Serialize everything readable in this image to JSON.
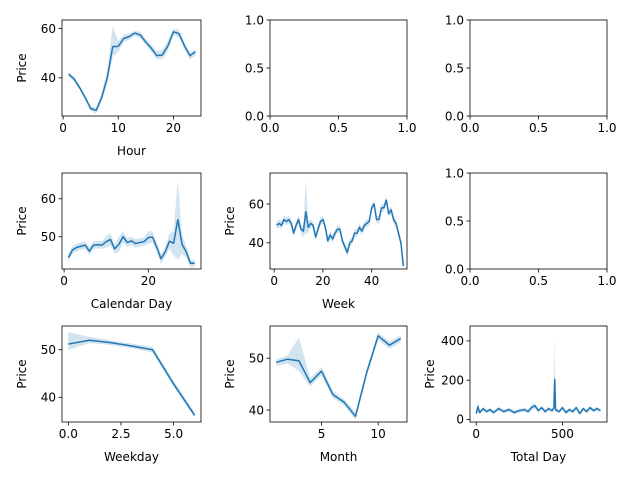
{
  "chart_data": [
    {
      "type": "line",
      "xlabel": "Hour",
      "ylabel": "Price",
      "xlim": [
        -0.2,
        25.0
      ],
      "ylim": [
        24.5,
        63.5
      ],
      "xticks": [
        0,
        10,
        20
      ],
      "yticks": [
        40,
        60
      ],
      "x": [
        1,
        2,
        3,
        4,
        5,
        6,
        7,
        8,
        9,
        10,
        11,
        12,
        13,
        14,
        15,
        16,
        17,
        18,
        19,
        20,
        21,
        22,
        23,
        24
      ],
      "series": [
        {
          "values": [
            41.5,
            39.5,
            36.0,
            32.0,
            27.5,
            26.8,
            32.0,
            40.0,
            52.7,
            52.8,
            56.0,
            56.8,
            58.2,
            57.4,
            54.5,
            52.0,
            49.0,
            49.3,
            53.0,
            58.7,
            58.0,
            53.0,
            49.0,
            50.6
          ]
        }
      ],
      "ci_upper": [
        42.5,
        40.5,
        37.0,
        33.0,
        28.5,
        28.0,
        34.0,
        43.0,
        61.0,
        55.0,
        57.5,
        58.0,
        59.2,
        58.6,
        55.8,
        53.5,
        50.8,
        51.5,
        55.0,
        60.0,
        59.5,
        54.5,
        50.5,
        51.5
      ],
      "ci_lower": [
        40.5,
        38.5,
        35.0,
        31.0,
        26.5,
        25.5,
        30.5,
        37.5,
        48.5,
        50.5,
        54.5,
        55.5,
        57.0,
        56.2,
        53.2,
        50.5,
        47.5,
        47.5,
        51.0,
        57.5,
        56.5,
        51.5,
        47.5,
        49.0
      ],
      "grid": false
    },
    {
      "type": "empty",
      "xlim": [
        0,
        1
      ],
      "ylim": [
        0,
        1
      ],
      "xticks": [
        "0.0",
        "0.5",
        "1.0"
      ],
      "yticks": [
        "0.0",
        "0.5",
        "1.0"
      ]
    },
    {
      "type": "empty",
      "xlim": [
        0,
        1
      ],
      "ylim": [
        0,
        1
      ],
      "xticks": [
        "0.0",
        "0.5",
        "1.0"
      ],
      "yticks": [
        "0.0",
        "0.5",
        "1.0"
      ]
    },
    {
      "type": "line",
      "xlabel": "Calendar Day",
      "ylabel": "Price",
      "xlim": [
        -0.5,
        32.5
      ],
      "ylim": [
        41.5,
        66.8
      ],
      "xticks": [
        0,
        20
      ],
      "yticks": [
        50,
        60
      ],
      "x": [
        1,
        2,
        3,
        4,
        5,
        6,
        7,
        8,
        9,
        10,
        11,
        12,
        13,
        14,
        15,
        16,
        17,
        18,
        19,
        20,
        21,
        22,
        23,
        24,
        25,
        26,
        27,
        28,
        29,
        30,
        31
      ],
      "series": [
        {
          "values": [
            44.5,
            46.5,
            47.2,
            47.5,
            47.8,
            46.2,
            47.8,
            47.9,
            47.8,
            48.7,
            49.3,
            46.8,
            48.0,
            50.0,
            48.5,
            48.9,
            48.2,
            48.5,
            48.7,
            49.8,
            49.9,
            47.2,
            44.2,
            46.0,
            48.8,
            48.3,
            54.5,
            48.0,
            46.0,
            43.0,
            43.0
          ]
        }
      ],
      "ci_upper": [
        45.5,
        47.5,
        48.2,
        48.5,
        48.8,
        47.2,
        48.8,
        48.9,
        48.8,
        50.2,
        51.0,
        48.0,
        50.0,
        51.5,
        49.7,
        50.0,
        49.3,
        49.6,
        49.8,
        51.5,
        51.3,
        48.5,
        45.5,
        47.3,
        50.8,
        51.5,
        65.0,
        50.5,
        47.5,
        44.0,
        44.0
      ],
      "ci_lower": [
        43.5,
        45.5,
        46.2,
        46.5,
        46.8,
        45.2,
        46.8,
        46.9,
        46.8,
        47.2,
        47.6,
        45.6,
        46.0,
        48.5,
        47.3,
        47.8,
        47.1,
        47.4,
        47.6,
        48.1,
        48.5,
        45.9,
        42.9,
        44.7,
        46.8,
        45.1,
        44.0,
        45.5,
        44.5,
        42.0,
        42.0
      ],
      "grid": false
    },
    {
      "type": "line",
      "xlabel": "Week",
      "ylabel": "Price",
      "xlim": [
        -1.7,
        54.5
      ],
      "ylim": [
        26.5,
        76.0
      ],
      "xticks": [
        0,
        20,
        40
      ],
      "yticks": [
        40,
        60
      ],
      "x": [
        1,
        2,
        3,
        4,
        5,
        6,
        7,
        8,
        9,
        10,
        11,
        12,
        13,
        14,
        15,
        16,
        17,
        18,
        19,
        20,
        21,
        22,
        23,
        24,
        25,
        26,
        27,
        28,
        29,
        30,
        31,
        32,
        33,
        34,
        35,
        36,
        37,
        38,
        39,
        40,
        41,
        42,
        43,
        44,
        45,
        46,
        47,
        48,
        49,
        50,
        51,
        52,
        53
      ],
      "series": [
        {
          "values": [
            49,
            50,
            49,
            52,
            51,
            52,
            50,
            45,
            49,
            52,
            47,
            46,
            56,
            48,
            50,
            49,
            43,
            47,
            51,
            52,
            48,
            41,
            44,
            42,
            45,
            47,
            47,
            41,
            38,
            35,
            40,
            41,
            45,
            45,
            48,
            46,
            49,
            50,
            51,
            58,
            60,
            52,
            52,
            58,
            58,
            62,
            55,
            57,
            52,
            50,
            45,
            40,
            28
          ]
        }
      ],
      "ci_upper": [
        51,
        52,
        51,
        54,
        53,
        54,
        52,
        47,
        51,
        54,
        49,
        49,
        73,
        51,
        52,
        51,
        45,
        49,
        53,
        54,
        50,
        43,
        46,
        44,
        47,
        49,
        49,
        43,
        40,
        37,
        42,
        43,
        47,
        47,
        50,
        48,
        51,
        52,
        53,
        60,
        62,
        54,
        54,
        60,
        60,
        64,
        57,
        59,
        54,
        52,
        47,
        42,
        30
      ],
      "ci_lower": [
        47,
        48,
        47,
        50,
        49,
        50,
        48,
        43,
        47,
        50,
        45,
        43,
        45,
        45,
        48,
        47,
        41,
        45,
        49,
        50,
        46,
        39,
        42,
        40,
        43,
        45,
        45,
        39,
        36,
        33,
        38,
        39,
        43,
        43,
        46,
        44,
        47,
        48,
        49,
        56,
        58,
        50,
        50,
        56,
        56,
        60,
        53,
        55,
        50,
        48,
        43,
        38,
        26
      ],
      "grid": false
    },
    {
      "type": "empty",
      "xlim": [
        0,
        1
      ],
      "ylim": [
        0,
        1
      ],
      "xticks": [
        "0.0",
        "0.5",
        "1.0"
      ],
      "yticks": [
        "0.0",
        "0.5",
        "1.0"
      ]
    },
    {
      "type": "line",
      "xlabel": "Weekday",
      "ylabel": "Price",
      "xlim": [
        -0.3,
        6.3
      ],
      "ylim": [
        34.8,
        55.0
      ],
      "xticks": [
        "0.0",
        "2.5",
        "5.0"
      ],
      "yticks": [
        40,
        50
      ],
      "x": [
        0,
        1,
        2,
        3,
        4,
        5,
        6
      ],
      "series": [
        {
          "values": [
            51.2,
            52.0,
            51.5,
            50.8,
            50.0,
            42.8,
            36.2
          ]
        }
      ],
      "ci_upper": [
        53.7,
        52.7,
        52.0,
        51.3,
        50.6,
        43.5,
        36.8
      ],
      "ci_lower": [
        50.0,
        51.4,
        51.0,
        50.3,
        49.4,
        42.2,
        35.7
      ],
      "grid": false
    },
    {
      "type": "line",
      "xlabel": "Month",
      "ylabel": "Price",
      "xlim": [
        0.45,
        12.55
      ],
      "ylim": [
        37.7,
        56.2
      ],
      "xticks": [
        5,
        10
      ],
      "yticks": [
        40,
        50
      ],
      "x": [
        1,
        2,
        3,
        4,
        5,
        6,
        7,
        8,
        9,
        10,
        11,
        12
      ],
      "series": [
        {
          "values": [
            49.2,
            49.8,
            49.5,
            45.3,
            47.5,
            43.0,
            41.5,
            38.8,
            47.3,
            54.3,
            52.5,
            53.8
          ]
        }
      ],
      "ci_upper": [
        49.8,
        50.5,
        54.0,
        46.2,
        48.3,
        43.7,
        42.1,
        39.6,
        48.0,
        55.0,
        53.2,
        54.5
      ],
      "ci_lower": [
        48.5,
        49.0,
        47.5,
        44.5,
        46.7,
        42.3,
        40.9,
        38.1,
        46.5,
        53.5,
        51.8,
        53.0
      ],
      "grid": false
    },
    {
      "type": "line",
      "xlabel": "Total Day",
      "ylabel": "Price",
      "xlim": [
        -36,
        758
      ],
      "ylim": [
        -13,
        476
      ],
      "xticks": [
        0,
        500
      ],
      "yticks": [
        0,
        200,
        400
      ],
      "x": [
        0,
        10,
        20,
        40,
        60,
        80,
        100,
        130,
        160,
        190,
        220,
        250,
        280,
        300,
        320,
        340,
        360,
        380,
        400,
        420,
        440,
        450,
        455,
        460,
        480,
        500,
        520,
        540,
        560,
        580,
        600,
        620,
        640,
        660,
        680,
        700,
        720
      ],
      "series": [
        {
          "values": [
            30,
            65,
            35,
            55,
            40,
            50,
            35,
            55,
            40,
            50,
            35,
            45,
            50,
            40,
            60,
            70,
            45,
            60,
            40,
            55,
            45,
            60,
            205,
            50,
            40,
            60,
            35,
            50,
            40,
            60,
            30,
            55,
            40,
            60,
            45,
            55,
            45
          ]
        }
      ],
      "ci_upper": [
        40,
        90,
        45,
        65,
        50,
        60,
        45,
        65,
        50,
        60,
        45,
        55,
        60,
        50,
        75,
        85,
        55,
        70,
        50,
        65,
        55,
        70,
        445,
        60,
        50,
        70,
        45,
        60,
        50,
        70,
        40,
        65,
        50,
        70,
        55,
        65,
        55
      ],
      "ci_lower": [
        20,
        40,
        25,
        45,
        30,
        40,
        25,
        45,
        30,
        40,
        25,
        35,
        40,
        30,
        45,
        55,
        35,
        50,
        30,
        45,
        35,
        50,
        40,
        40,
        30,
        50,
        25,
        40,
        30,
        50,
        20,
        45,
        30,
        50,
        35,
        45,
        35
      ],
      "grid": false
    }
  ]
}
